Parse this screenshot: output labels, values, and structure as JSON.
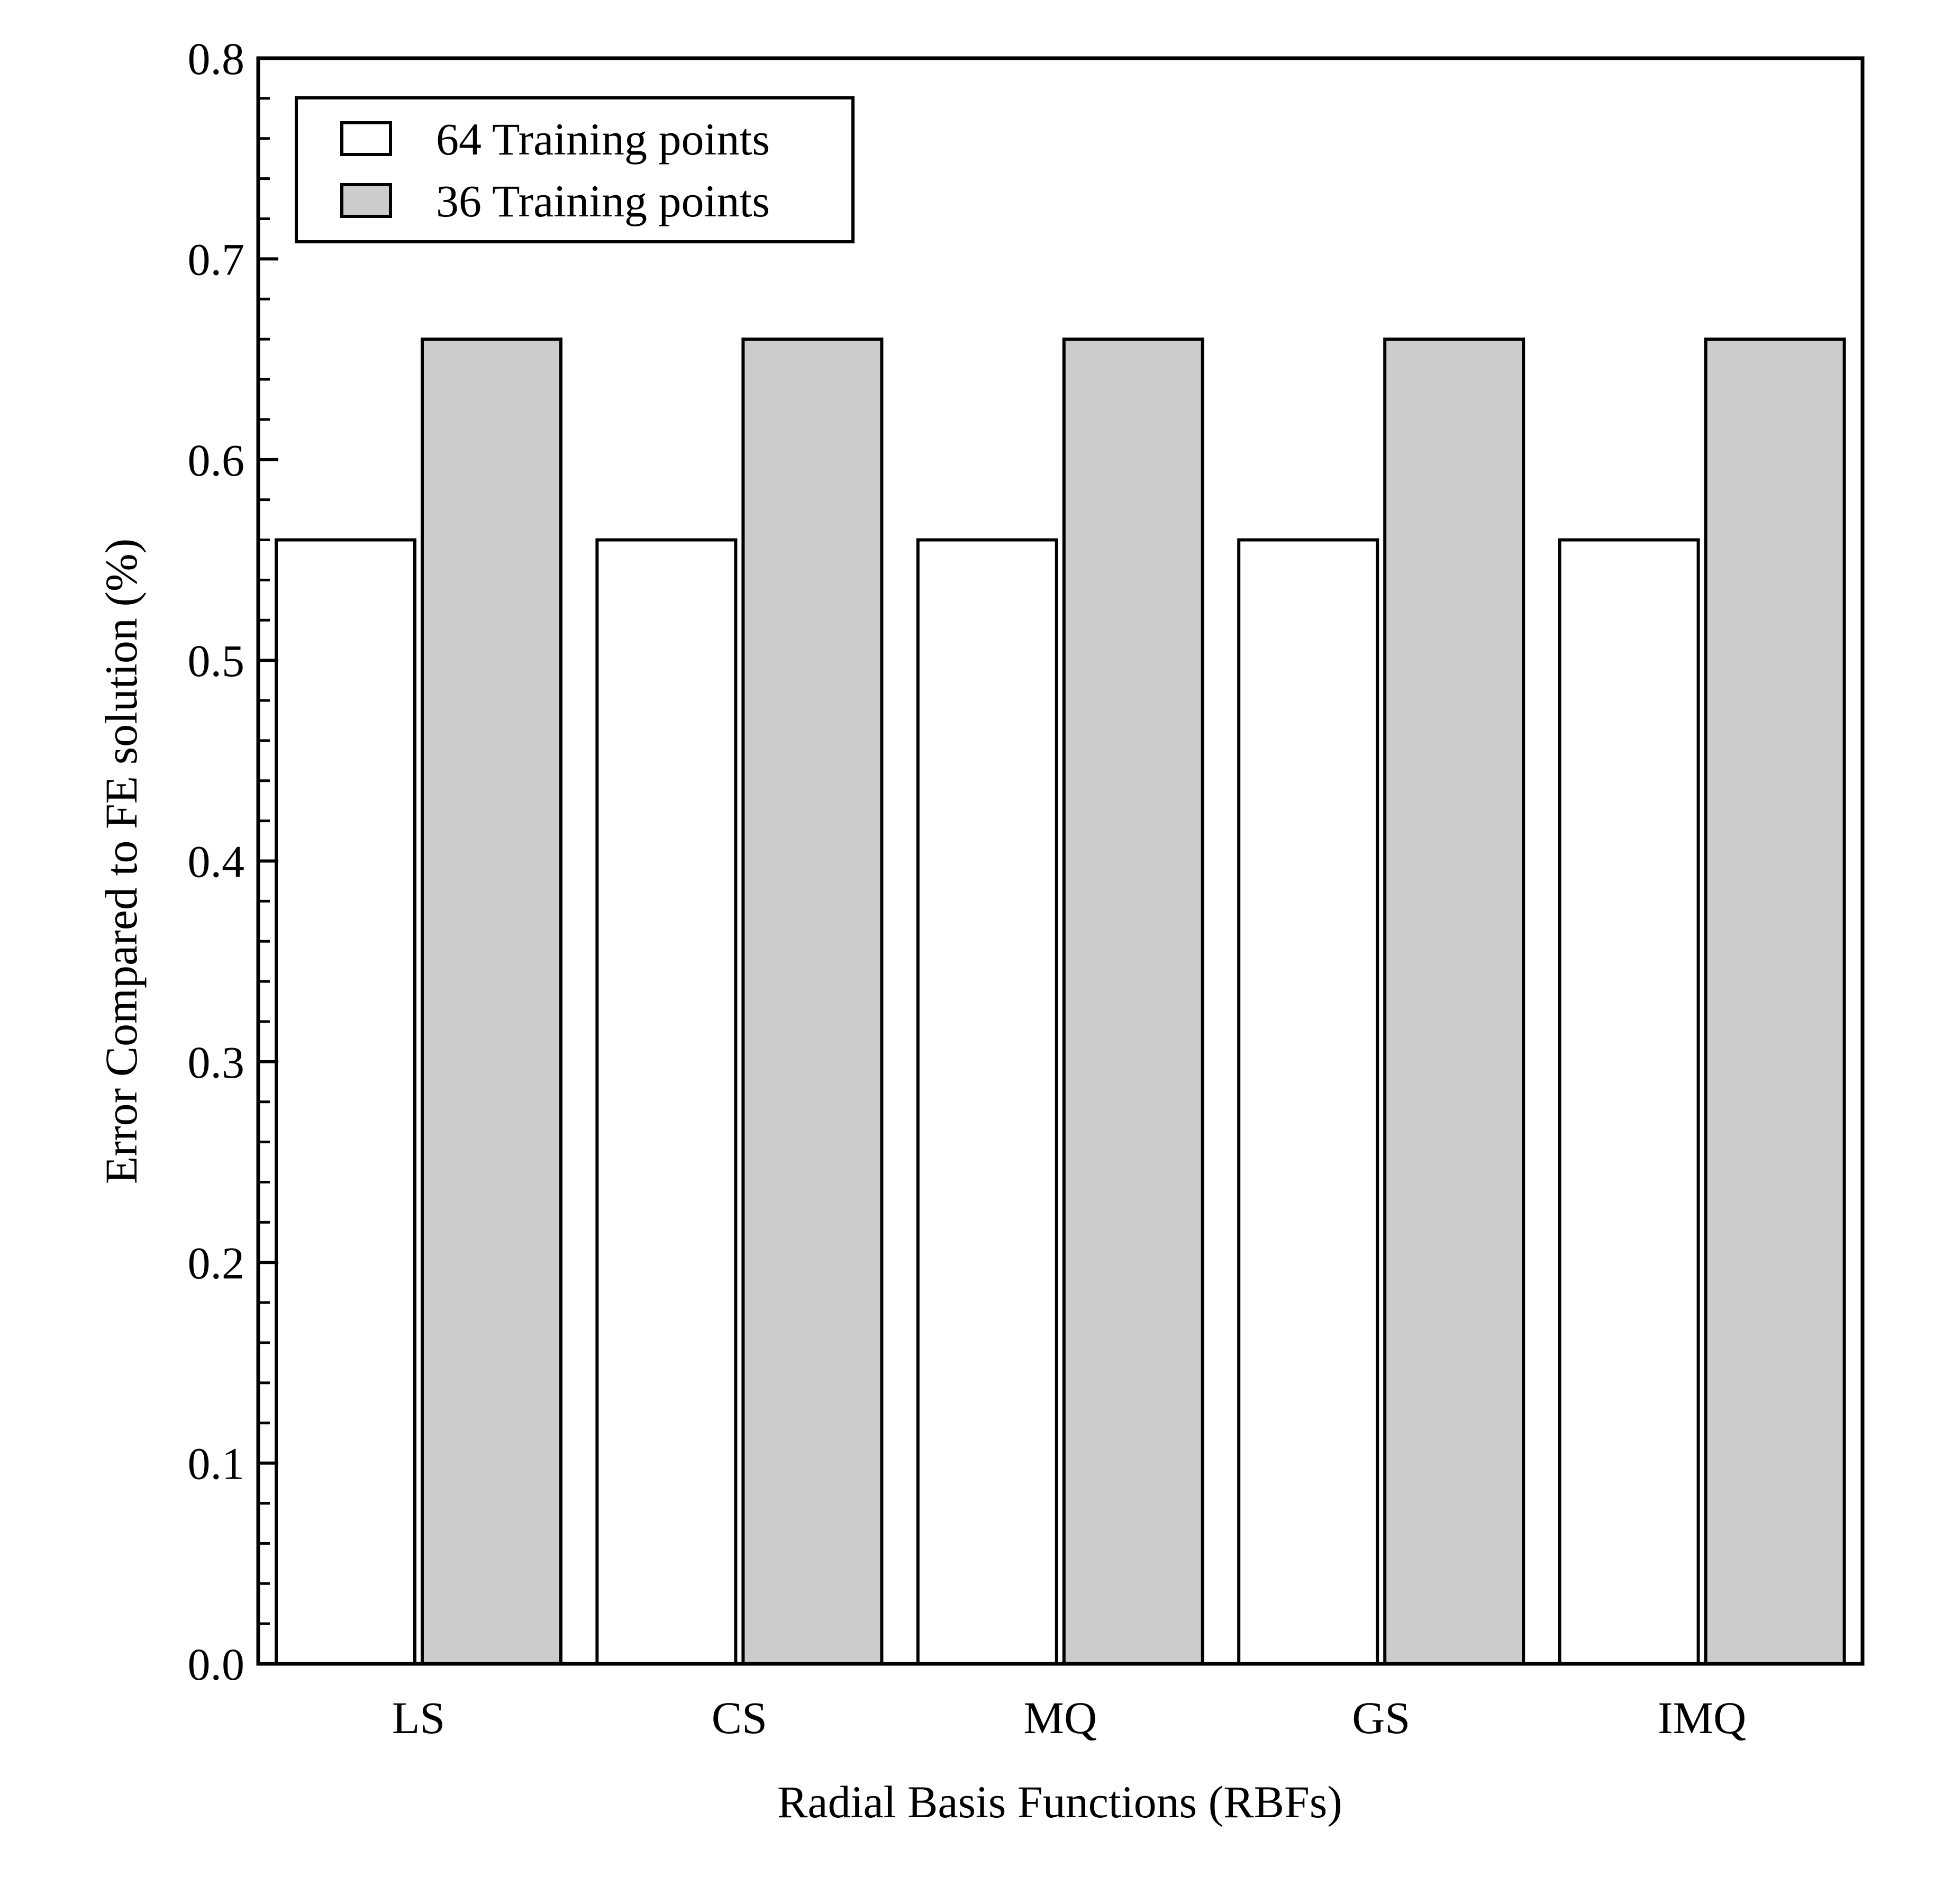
{
  "chart_data": {
    "type": "bar",
    "categories": [
      "LS",
      "CS",
      "MQ",
      "GS",
      "IMQ"
    ],
    "series": [
      {
        "name": "64 Training points",
        "values": [
          0.56,
          0.56,
          0.56,
          0.56,
          0.56
        ],
        "color": "#ffffff"
      },
      {
        "name": "36 Training points",
        "values": [
          0.66,
          0.66,
          0.66,
          0.66,
          0.66
        ],
        "color": "#cccccc"
      }
    ],
    "xlabel": "Radial Basis Functions (RBFs)",
    "ylabel": "Error Compared to FE solution (%)",
    "ylim": [
      0,
      0.8
    ],
    "yticks": [
      "0.0",
      "0.1",
      "0.2",
      "0.3",
      "0.4",
      "0.5",
      "0.6",
      "0.7",
      "0.8"
    ],
    "ytick_values": [
      0,
      0.1,
      0.2,
      0.3,
      0.4,
      0.5,
      0.6,
      0.7,
      0.8
    ],
    "minor_ticks_per_major": 5,
    "grid": false,
    "legend_position": "top-left",
    "edge_color": "#000000"
  }
}
